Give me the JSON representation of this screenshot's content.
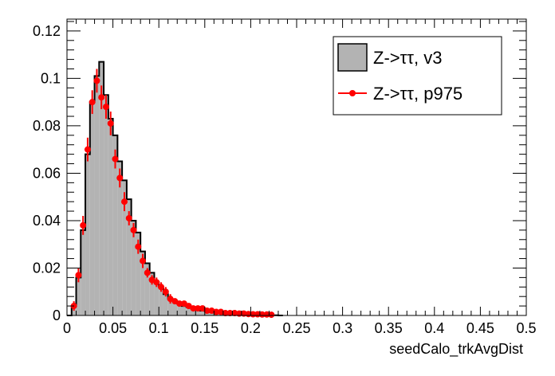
{
  "chart_data": {
    "type": "histogram",
    "xlabel": "seedCalo_trkAvgDist",
    "ylabel": "",
    "xlim": [
      0,
      0.5
    ],
    "ylim": [
      0,
      0.125
    ],
    "grid": false,
    "legend_position": "top-right",
    "x_ticks": [
      "0",
      "0.05",
      "0.1",
      "0.15",
      "0.2",
      "0.25",
      "0.3",
      "0.35",
      "0.4",
      "0.45",
      "0.5"
    ],
    "y_ticks": [
      "0",
      "0.02",
      "0.04",
      "0.06",
      "0.08",
      "0.1",
      "0.12"
    ],
    "bin_width": 0.005,
    "series": [
      {
        "name": "Z->ττ, v3",
        "style": "filled-histogram",
        "fill_color": "#b3b3b3",
        "line_color": "#000000",
        "bin_edges_start": 0.0,
        "values": [
          0.0,
          0.004,
          0.016,
          0.036,
          0.068,
          0.09,
          0.101,
          0.107,
          0.093,
          0.083,
          0.076,
          0.065,
          0.057,
          0.049,
          0.04,
          0.035,
          0.027,
          0.022,
          0.018,
          0.014,
          0.012,
          0.009,
          0.007,
          0.006,
          0.005,
          0.004,
          0.0035,
          0.003,
          0.0025,
          0.002,
          0.0018,
          0.0015,
          0.0012,
          0.001,
          0.0008,
          0.0007,
          0.0006,
          0.0005,
          0.0004,
          0.0003,
          0.0003,
          0.0002,
          0.0002,
          0.0001,
          0.0001,
          0.0001,
          0.0
        ]
      },
      {
        "name": "Z->ττ, p975",
        "style": "markers-with-errors",
        "color": "#ff0000",
        "x": [
          0.0075,
          0.0125,
          0.0175,
          0.0225,
          0.0275,
          0.0325,
          0.0375,
          0.0425,
          0.0475,
          0.0525,
          0.0575,
          0.0625,
          0.0675,
          0.0725,
          0.0775,
          0.0825,
          0.0875,
          0.0925,
          0.0975,
          0.1025,
          0.1075,
          0.1125,
          0.1175,
          0.1225,
          0.1275,
          0.1325,
          0.1375,
          0.1425,
          0.1475,
          0.1525,
          0.1575,
          0.1625,
          0.1675,
          0.1725,
          0.1775,
          0.1825,
          0.1875,
          0.1925,
          0.1975,
          0.2025,
          0.2075,
          0.2125,
          0.2175,
          0.2225
        ],
        "y": [
          0.004,
          0.017,
          0.038,
          0.07,
          0.09,
          0.099,
          0.092,
          0.088,
          0.081,
          0.066,
          0.058,
          0.048,
          0.041,
          0.036,
          0.029,
          0.023,
          0.018,
          0.015,
          0.014,
          0.012,
          0.01,
          0.007,
          0.006,
          0.005,
          0.005,
          0.004,
          0.003,
          0.003,
          0.003,
          0.002,
          0.002,
          0.0015,
          0.0015,
          0.001,
          0.001,
          0.001,
          0.0008,
          0.0008,
          0.0006,
          0.0005,
          0.0005,
          0.0004,
          0.0004,
          0.0003
        ],
        "yerr": [
          0.002,
          0.003,
          0.004,
          0.005,
          0.005,
          0.005,
          0.005,
          0.005,
          0.005,
          0.004,
          0.004,
          0.004,
          0.003,
          0.003,
          0.003,
          0.003,
          0.002,
          0.002,
          0.002,
          0.002,
          0.002,
          0.002,
          0.001,
          0.001,
          0.001,
          0.001,
          0.001,
          0.001,
          0.001,
          0.001,
          0.001,
          0.001,
          0.001,
          0.001,
          0.001,
          0.001,
          0.001,
          0.001,
          0.001,
          0.001,
          0.001,
          0.001,
          0.001,
          0.001
        ]
      }
    ]
  }
}
